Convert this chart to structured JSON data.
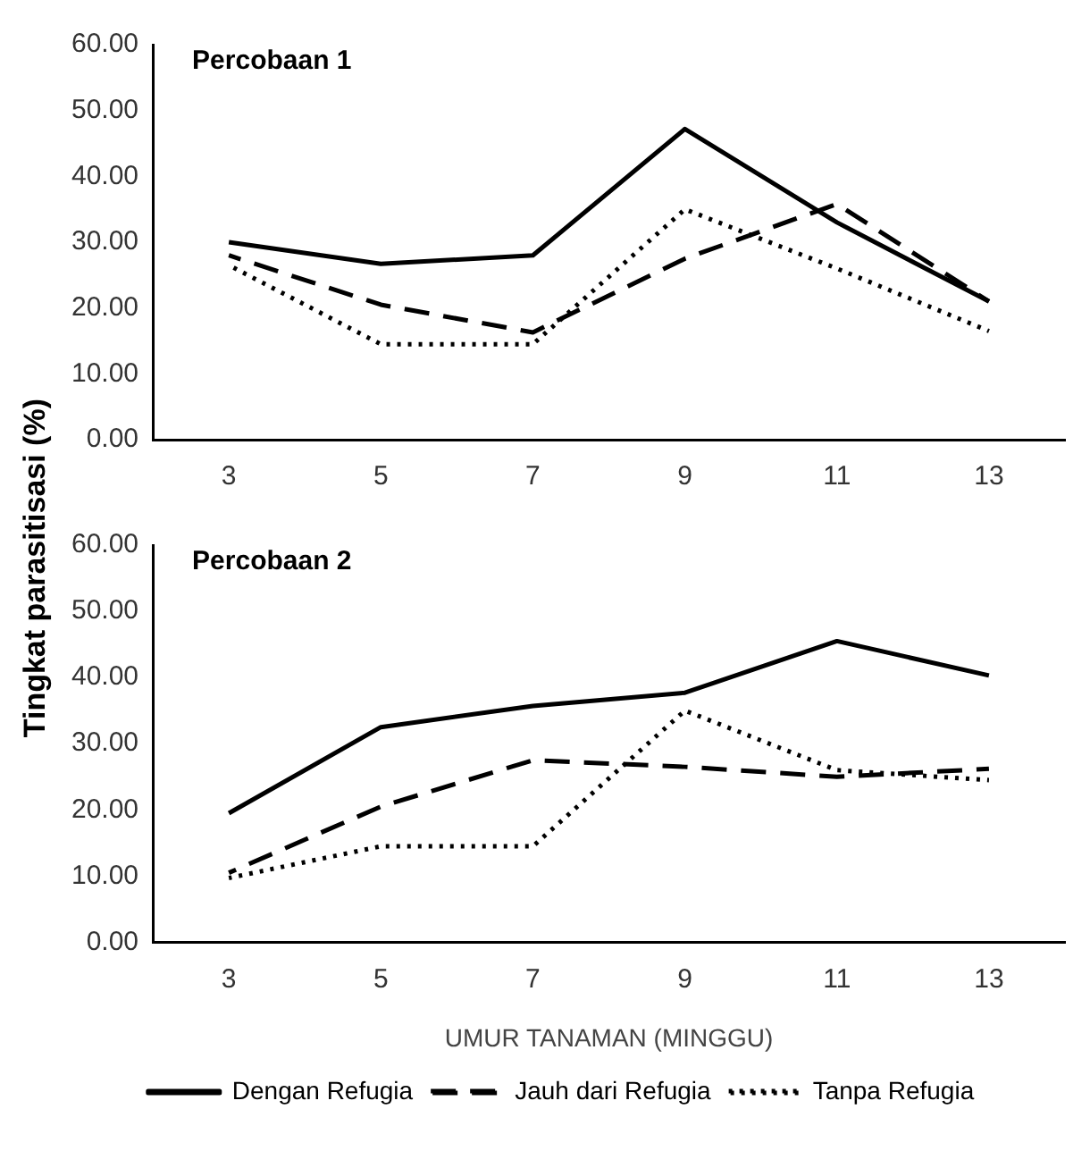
{
  "chart_data": [
    {
      "type": "line",
      "title": "Percobaan 1",
      "ylabel": "Tingkat parasitisasi (%)",
      "categories": [
        "3",
        "5",
        "7",
        "9",
        "11",
        "13"
      ],
      "ylim": [
        0,
        60
      ],
      "yticks": [
        {
          "value": 0,
          "label": "0.00"
        },
        {
          "value": 10,
          "label": "10.00"
        },
        {
          "value": 20,
          "label": "20.00"
        },
        {
          "value": 30,
          "label": "30.00"
        },
        {
          "value": 40,
          "label": "40.00"
        },
        {
          "value": 50,
          "label": "50.00"
        },
        {
          "value": 60,
          "label": "60.00"
        }
      ],
      "grid": false,
      "legend": false,
      "marker": "none",
      "series": [
        {
          "color": "#000000",
          "line_style": "solid",
          "values": [
            30,
            26.7,
            28,
            47.2,
            33,
            21
          ]
        },
        {
          "color": "#000000",
          "line_style": "dashed",
          "values": [
            28,
            20.5,
            16.3,
            27.5,
            35.8,
            21
          ]
        },
        {
          "color": "#000000",
          "line_style": "dotted",
          "values": [
            26.5,
            14.5,
            14.5,
            35,
            26,
            16.5
          ]
        }
      ]
    },
    {
      "type": "line",
      "title": "Percobaan 2",
      "xlabel": "UMUR TANAMAN (MINGGU)",
      "categories": [
        "3",
        "5",
        "7",
        "9",
        "11",
        "13"
      ],
      "ylim": [
        0,
        60
      ],
      "yticks": [
        {
          "value": 0,
          "label": "0.00"
        },
        {
          "value": 10,
          "label": "10.00"
        },
        {
          "value": 20,
          "label": "20.00"
        },
        {
          "value": 30,
          "label": "30.00"
        },
        {
          "value": 40,
          "label": "40.00"
        },
        {
          "value": 50,
          "label": "50.00"
        },
        {
          "value": 60,
          "label": "60.00"
        }
      ],
      "grid": false,
      "legend": "bottom",
      "marker": "none",
      "series": [
        {
          "name": "Dengan Refugia",
          "color": "#000000",
          "line_style": "solid",
          "values": [
            19.5,
            32.5,
            35.7,
            37.7,
            45.5,
            40.3
          ]
        },
        {
          "name": "Jauh dari Refugia",
          "color": "#000000",
          "line_style": "dashed",
          "values": [
            10.5,
            20.5,
            27.5,
            26.5,
            25,
            26.2
          ]
        },
        {
          "name": "Tanpa Refugia",
          "color": "#000000",
          "line_style": "dotted",
          "values": [
            9.7,
            14.5,
            14.5,
            35,
            26,
            24.5
          ]
        }
      ]
    }
  ]
}
